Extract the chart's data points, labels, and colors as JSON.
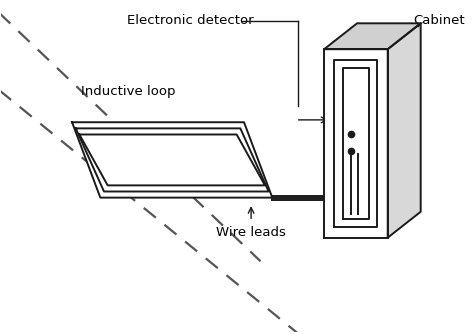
{
  "background_color": "#ffffff",
  "line_color": "#1a1a1a",
  "dashed_color": "#555555",
  "labels": {
    "electronic_detector": "Electronic detector",
    "cabinet": "Cabinet",
    "inductive_loop": "Inductive loop",
    "wire_leads": "Wire leads"
  },
  "figsize": [
    4.74,
    3.34
  ],
  "dpi": 100
}
